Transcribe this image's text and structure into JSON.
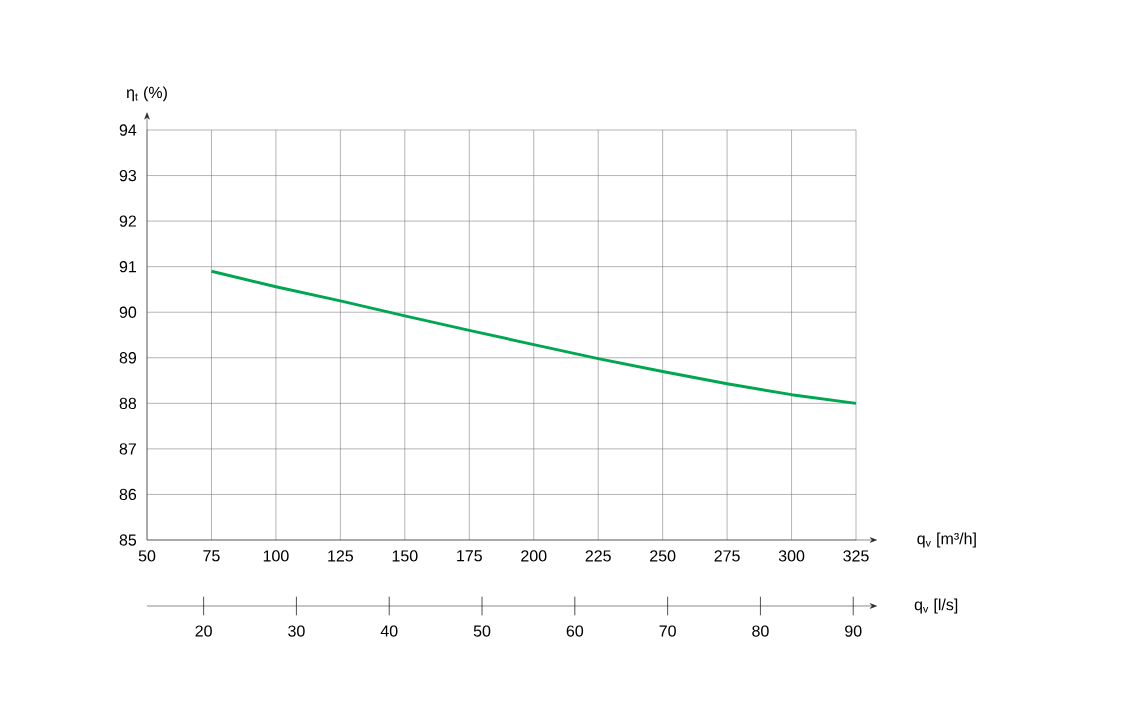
{
  "chart_data": {
    "type": "line",
    "xlabel": "q$_{v}$ [m³/h]",
    "ylabel": "η$_{t}$ (%)",
    "x2label": "q$_{v}$ [l/s]",
    "x": [
      75,
      100,
      125,
      150,
      175,
      200,
      225,
      250,
      275,
      300,
      325
    ],
    "series": [
      {
        "color": "#00a651",
        "values": [
          90.9,
          90.56,
          90.25,
          89.92,
          89.6,
          89.29,
          88.98,
          88.7,
          88.43,
          88.19,
          88.0
        ]
      }
    ],
    "xlim": [
      50,
      325
    ],
    "xticks": [
      50,
      75,
      100,
      125,
      150,
      175,
      200,
      225,
      250,
      275,
      300,
      325
    ],
    "ylim": [
      85,
      94
    ],
    "yticks": [
      85,
      86,
      87,
      88,
      89,
      90,
      91,
      92,
      93,
      94
    ],
    "x2lim": [
      13.9,
      90.3
    ],
    "x2ticks": [
      20,
      30,
      40,
      50,
      60,
      70,
      80,
      90
    ],
    "grid": true
  }
}
